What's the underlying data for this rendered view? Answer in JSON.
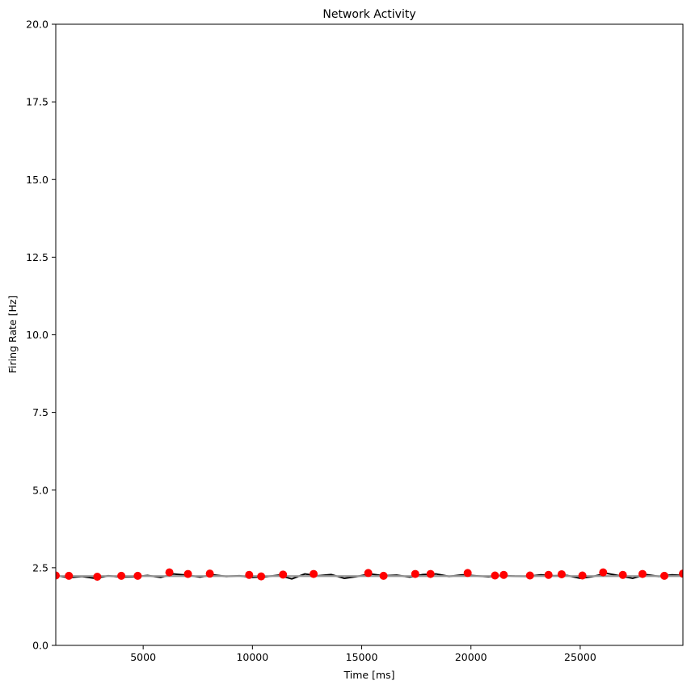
{
  "chart_data": {
    "type": "line",
    "title": "Network Activity",
    "xlabel": "Time [ms]",
    "ylabel": "Firing Rate [Hz]",
    "xlim": [
      1000,
      29700
    ],
    "ylim": [
      0,
      20
    ],
    "xticks": [
      5000,
      10000,
      15000,
      20000,
      25000
    ],
    "xtick_labels": [
      "5000",
      "10000",
      "15000",
      "20000",
      "25000"
    ],
    "yticks": [
      0.0,
      2.5,
      5.0,
      7.5,
      10.0,
      12.5,
      15.0,
      17.5,
      20.0
    ],
    "ytick_labels": [
      "0.0",
      "2.5",
      "5.0",
      "7.5",
      "10.0",
      "12.5",
      "15.0",
      "17.5",
      "20.0"
    ],
    "grid": false,
    "series": [
      {
        "style": "line",
        "color": "#000000",
        "x": [
          1000,
          1600,
          2200,
          2800,
          3400,
          4000,
          4600,
          5200,
          5800,
          6400,
          7000,
          7600,
          8200,
          8800,
          9400,
          10000,
          10600,
          11200,
          11800,
          12400,
          13000,
          13600,
          14200,
          14800,
          15400,
          16000,
          16600,
          17200,
          17800,
          18400,
          19000,
          19600,
          20200,
          20800,
          21400,
          22000,
          22600,
          23200,
          23800,
          24400,
          25000,
          25600,
          26200,
          26800,
          27400,
          28000,
          28600,
          29200,
          29700
        ],
        "y": [
          2.25,
          2.18,
          2.22,
          2.16,
          2.24,
          2.2,
          2.21,
          2.25,
          2.19,
          2.3,
          2.26,
          2.2,
          2.27,
          2.22,
          2.24,
          2.19,
          2.21,
          2.26,
          2.14,
          2.3,
          2.24,
          2.28,
          2.16,
          2.22,
          2.3,
          2.24,
          2.26,
          2.2,
          2.28,
          2.3,
          2.22,
          2.27,
          2.24,
          2.21,
          2.25,
          2.23,
          2.22,
          2.27,
          2.24,
          2.25,
          2.16,
          2.22,
          2.32,
          2.24,
          2.16,
          2.28,
          2.22,
          2.27,
          2.25
        ]
      },
      {
        "style": "line",
        "color": "#999999",
        "x": [
          1000,
          29700
        ],
        "y": [
          2.23,
          2.23
        ]
      },
      {
        "style": "markers",
        "color": "#ff0000",
        "x": [
          1000,
          1600,
          2900,
          4000,
          4750,
          6200,
          7050,
          8050,
          9850,
          10400,
          11400,
          12800,
          15300,
          16000,
          17450,
          18150,
          19850,
          21100,
          21500,
          22700,
          23550,
          24150,
          25100,
          26050,
          26950,
          27850,
          28850,
          29700
        ],
        "y": [
          2.25,
          2.24,
          2.21,
          2.24,
          2.24,
          2.35,
          2.3,
          2.31,
          2.27,
          2.22,
          2.28,
          2.3,
          2.33,
          2.24,
          2.3,
          2.3,
          2.33,
          2.25,
          2.27,
          2.25,
          2.27,
          2.29,
          2.25,
          2.35,
          2.27,
          2.3,
          2.24,
          2.31
        ]
      }
    ]
  }
}
